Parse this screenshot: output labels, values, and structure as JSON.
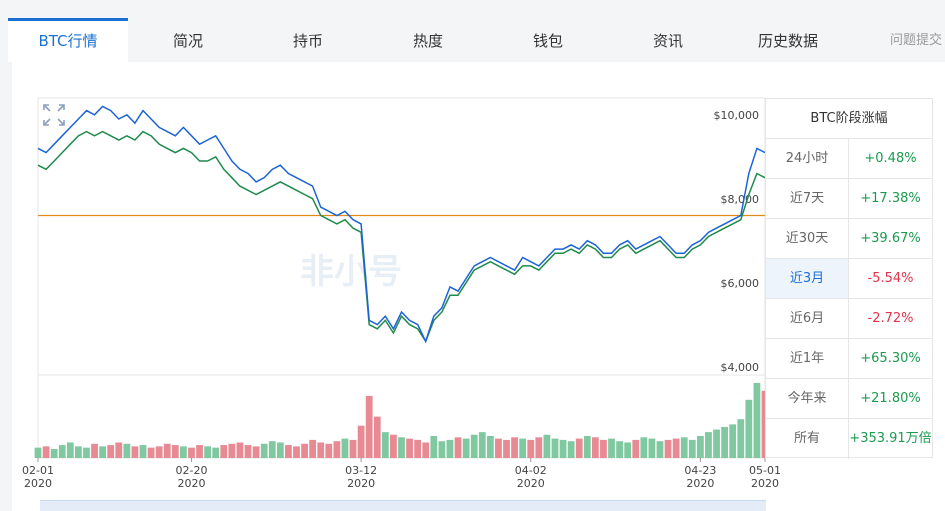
{
  "tabs": [
    {
      "label": "BTC行情",
      "active": true
    },
    {
      "label": "简况"
    },
    {
      "label": "持币"
    },
    {
      "label": "热度"
    },
    {
      "label": "钱包"
    },
    {
      "label": "资讯"
    },
    {
      "label": "历史数据"
    },
    {
      "label": "问题提交"
    }
  ],
  "stats": {
    "title": "BTC阶段涨幅",
    "rows": [
      {
        "label": "24小时",
        "value": "+0.48%",
        "dir": "up"
      },
      {
        "label": "近7天",
        "value": "+17.38%",
        "dir": "up"
      },
      {
        "label": "近30天",
        "value": "+39.67%",
        "dir": "up"
      },
      {
        "label": "近3月",
        "value": "-5.54%",
        "dir": "down",
        "selected": true
      },
      {
        "label": "近6月",
        "value": "-2.72%",
        "dir": "down"
      },
      {
        "label": "近1年",
        "value": "+65.30%",
        "dir": "up"
      },
      {
        "label": "今年来",
        "value": "+21.80%",
        "dir": "up"
      },
      {
        "label": "所有",
        "value": "+353.91万倍",
        "dir": "up"
      }
    ]
  },
  "watermark": "非小号",
  "chart_data": {
    "type": "line",
    "y_ticks": [
      "$10,000",
      "$8,000",
      "$6,000",
      "$4,000"
    ],
    "y_tick_values": [
      10000,
      8000,
      6000,
      4000
    ],
    "ylim": [
      4000,
      10600
    ],
    "x_ticks": [
      {
        "date": "02-01",
        "year": "2020",
        "day": 0
      },
      {
        "date": "02-20",
        "year": "2020",
        "day": 19
      },
      {
        "date": "03-12",
        "year": "2020",
        "day": 40
      },
      {
        "date": "04-02",
        "year": "2020",
        "day": 61
      },
      {
        "date": "04-23",
        "year": "2020",
        "day": 82
      },
      {
        "date": "05-01",
        "year": "2020",
        "day": 90
      }
    ],
    "reference_line": 7800,
    "colors": {
      "blue": "#1c64d6",
      "green": "#1f8a4c",
      "ref": "#e08a18",
      "vol_up": "#7fc8a0",
      "vol_down": "#e88a94"
    },
    "series": [
      {
        "color": "blue",
        "values": [
          9400,
          9300,
          9500,
          9700,
          9900,
          10100,
          10300,
          10200,
          10400,
          10300,
          10100,
          10200,
          10000,
          10300,
          10100,
          9900,
          9800,
          9700,
          9900,
          9700,
          9500,
          9600,
          9700,
          9400,
          9100,
          8900,
          8800,
          8600,
          8700,
          8900,
          9000,
          8800,
          8700,
          8600,
          8500,
          8000,
          7900,
          7800,
          7900,
          7700,
          7600,
          5300,
          5200,
          5400,
          5100,
          5500,
          5300,
          5200,
          4800,
          5400,
          5600,
          6100,
          6000,
          6300,
          6600,
          6700,
          6800,
          6700,
          6600,
          6500,
          6800,
          6700,
          6600,
          6800,
          7000,
          7000,
          7100,
          7000,
          7200,
          7100,
          6900,
          6900,
          7100,
          7200,
          7000,
          7100,
          7200,
          7300,
          7100,
          6900,
          6900,
          7100,
          7200,
          7400,
          7500,
          7600,
          7700,
          7800,
          8800,
          9400,
          9300
        ]
      },
      {
        "color": "green",
        "values": [
          9000,
          8900,
          9100,
          9300,
          9500,
          9700,
          9800,
          9700,
          9800,
          9700,
          9600,
          9700,
          9600,
          9800,
          9700,
          9500,
          9400,
          9300,
          9400,
          9300,
          9100,
          9100,
          9200,
          8900,
          8700,
          8500,
          8400,
          8300,
          8400,
          8500,
          8600,
          8500,
          8400,
          8300,
          8200,
          7800,
          7700,
          7600,
          7700,
          7500,
          7400,
          5200,
          5100,
          5300,
          5000,
          5400,
          5200,
          5100,
          4800,
          5300,
          5500,
          5900,
          5900,
          6200,
          6500,
          6600,
          6700,
          6600,
          6500,
          6400,
          6600,
          6600,
          6500,
          6700,
          6900,
          6900,
          7000,
          6900,
          7100,
          7000,
          6800,
          6800,
          7000,
          7100,
          6900,
          7000,
          7100,
          7200,
          7000,
          6800,
          6800,
          7000,
          7100,
          7300,
          7400,
          7500,
          7600,
          7700,
          8300,
          8800,
          8700
        ]
      }
    ],
    "volume": [
      8,
      9,
      7,
      10,
      12,
      9,
      8,
      11,
      9,
      10,
      12,
      11,
      9,
      10,
      8,
      9,
      11,
      10,
      9,
      8,
      10,
      9,
      8,
      10,
      11,
      12,
      10,
      9,
      11,
      13,
      12,
      10,
      9,
      11,
      14,
      12,
      11,
      13,
      15,
      14,
      25,
      48,
      32,
      20,
      18,
      16,
      15,
      14,
      12,
      17,
      13,
      14,
      16,
      15,
      18,
      20,
      17,
      15,
      14,
      16,
      15,
      14,
      16,
      18,
      15,
      14,
      13,
      15,
      17,
      16,
      14,
      15,
      13,
      12,
      14,
      16,
      15,
      13,
      14,
      15,
      16,
      14,
      17,
      20,
      22,
      24,
      26,
      30,
      45,
      58,
      52
    ]
  }
}
